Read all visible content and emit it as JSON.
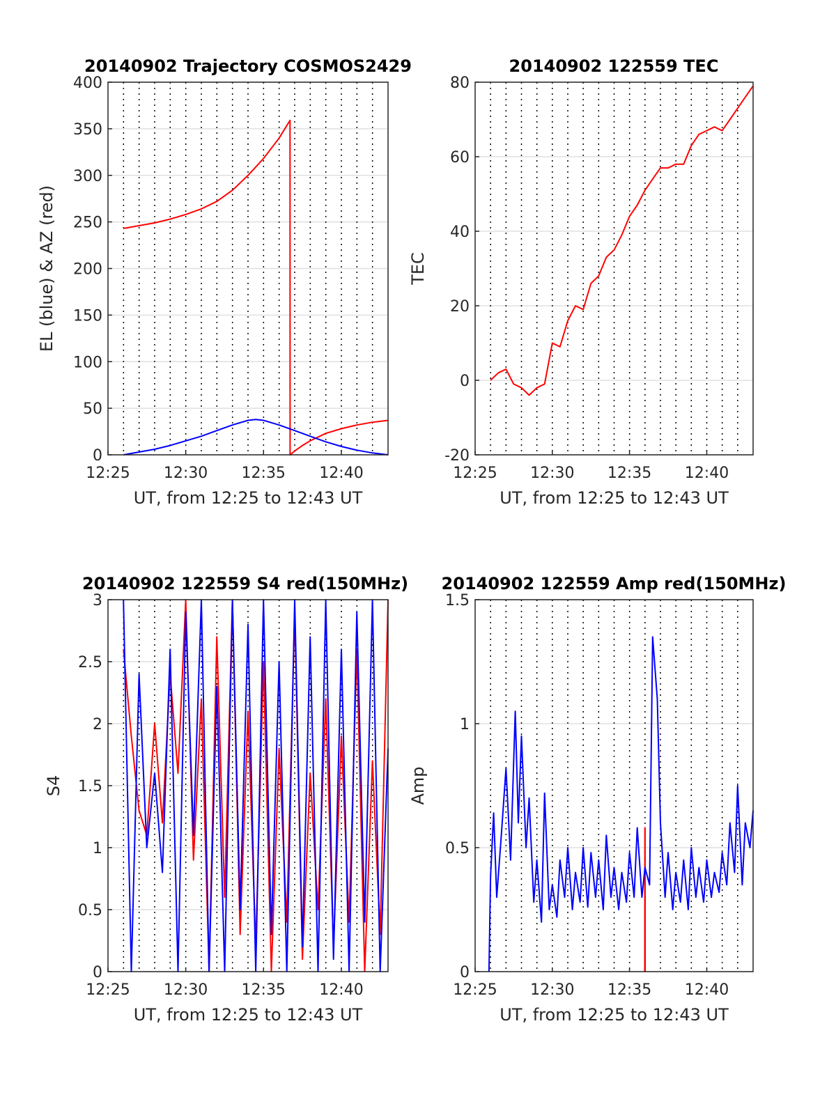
{
  "chart_data": [
    {
      "type": "line",
      "title": "20140902 Trajectory COSMOS2429",
      "xlabel": "UT, from 12:25 to 12:43 UT",
      "ylabel": "EL (blue) & AZ (red)",
      "xlim": [
        12.4167,
        12.7167
      ],
      "ylim": [
        0,
        400
      ],
      "x_ticks": [
        12.4167,
        12.5,
        12.5833,
        12.6667
      ],
      "x_tick_labels": [
        "12:25",
        "12:30",
        "12:35",
        "12:40"
      ],
      "y_ticks": [
        0,
        50,
        100,
        150,
        200,
        250,
        300,
        350,
        400
      ],
      "y_tick_labels": [
        "0",
        "50",
        "100",
        "150",
        "200",
        "250",
        "300",
        "350",
        "400"
      ],
      "grid": "dotted vertical every minute, light horizontal at ticks",
      "series": [
        {
          "color": "#ff0000",
          "x": [
            12.4333,
            12.45,
            12.4667,
            12.4833,
            12.5,
            12.5167,
            12.5333,
            12.55,
            12.5667,
            12.5833,
            12.6,
            12.6117,
            12.6118,
            12.6167,
            12.625,
            12.6333,
            12.65,
            12.6667,
            12.6833,
            12.7,
            12.7167
          ],
          "y": [
            243,
            246,
            249,
            253,
            258,
            264,
            272,
            284,
            300,
            318,
            340,
            359,
            0,
            4,
            10,
            15,
            23,
            28,
            32,
            35,
            37
          ]
        },
        {
          "color": "#0000ff",
          "x": [
            12.4333,
            12.45,
            12.4667,
            12.4833,
            12.5,
            12.5167,
            12.5333,
            12.55,
            12.5667,
            12.575,
            12.5833,
            12.6,
            12.6167,
            12.6333,
            12.65,
            12.6667,
            12.6833,
            12.7,
            12.7167
          ],
          "y": [
            0,
            3,
            6,
            10,
            15,
            20,
            26,
            32,
            37,
            38,
            37,
            32,
            26,
            20,
            14,
            9,
            5,
            2,
            0
          ]
        }
      ]
    },
    {
      "type": "line",
      "title": "20140902 122559 TEC",
      "xlabel": "UT, from 12:25 to 12:43 UT",
      "ylabel": "TEC",
      "xlim": [
        12.4167,
        12.7167
      ],
      "ylim": [
        -20,
        80
      ],
      "x_ticks": [
        12.4167,
        12.5,
        12.5833,
        12.6667
      ],
      "x_tick_labels": [
        "12:25",
        "12:30",
        "12:35",
        "12:40"
      ],
      "y_ticks": [
        -20,
        0,
        20,
        40,
        60,
        80
      ],
      "y_tick_labels": [
        "-20",
        "0",
        "20",
        "40",
        "60",
        "80"
      ],
      "grid": "dotted vertical every minute, light horizontal at ticks",
      "series": [
        {
          "color": "#ff0000",
          "x": [
            12.4333,
            12.4417,
            12.45,
            12.4583,
            12.4667,
            12.475,
            12.4833,
            12.4917,
            12.5,
            12.5083,
            12.5167,
            12.525,
            12.5333,
            12.5417,
            12.55,
            12.5583,
            12.5667,
            12.575,
            12.5833,
            12.5917,
            12.6,
            12.6083,
            12.6167,
            12.625,
            12.6333,
            12.6417,
            12.65,
            12.6583,
            12.6667,
            12.675,
            12.6833,
            12.6917,
            12.7,
            12.7083,
            12.7167
          ],
          "y": [
            0,
            2,
            3,
            -1,
            -2,
            -4,
            -2,
            -1,
            10,
            9,
            16,
            20,
            19,
            26,
            28,
            33,
            35,
            39,
            44,
            47,
            51,
            54,
            57,
            57,
            58,
            58,
            63,
            66,
            67,
            68,
            67,
            70,
            73,
            76,
            79
          ]
        }
      ]
    },
    {
      "type": "line",
      "title": "20140902 122559 S4 red(150MHz)",
      "xlabel": "UT, from 12:25 to 12:43 UT",
      "ylabel": "S4",
      "xlim": [
        12.4167,
        12.7167
      ],
      "ylim": [
        0,
        3
      ],
      "x_ticks": [
        12.4167,
        12.5,
        12.5833,
        12.6667
      ],
      "x_tick_labels": [
        "12:25",
        "12:30",
        "12:35",
        "12:40"
      ],
      "y_ticks": [
        0,
        0.5,
        1,
        1.5,
        2,
        2.5,
        3
      ],
      "y_tick_labels": [
        "0",
        "0.5",
        "1",
        "1.5",
        "2",
        "2.5",
        "3"
      ],
      "grid": "dotted vertical every minute, light horizontal at ticks",
      "series": [
        {
          "color": "#ff0000",
          "x": [
            12.4333,
            12.4417,
            12.45,
            12.4583,
            12.4667,
            12.475,
            12.4833,
            12.4917,
            12.5,
            12.5083,
            12.5167,
            12.525,
            12.5333,
            12.5417,
            12.55,
            12.5583,
            12.5667,
            12.575,
            12.5833,
            12.5917,
            12.6,
            12.6083,
            12.6167,
            12.625,
            12.6333,
            12.6417,
            12.65,
            12.6583,
            12.6667,
            12.675,
            12.6833,
            12.6917,
            12.7,
            12.7083,
            12.7167
          ],
          "y": [
            2.6,
            1.9,
            1.3,
            1.1,
            2.0,
            1.2,
            2.4,
            1.6,
            3.0,
            0.9,
            2.2,
            0.0,
            2.7,
            0.6,
            3.0,
            0.3,
            2.1,
            0.2,
            2.5,
            0.0,
            1.8,
            0.4,
            2.9,
            0.1,
            1.6,
            0.5,
            2.2,
            0.2,
            1.9,
            0.4,
            2.6,
            0.0,
            1.7,
            0.3,
            3.0
          ]
        },
        {
          "color": "#0000ff",
          "x": [
            12.4333,
            12.4417,
            12.45,
            12.4583,
            12.4667,
            12.475,
            12.4833,
            12.4917,
            12.5,
            12.5083,
            12.5167,
            12.525,
            12.5333,
            12.5417,
            12.55,
            12.5583,
            12.5667,
            12.575,
            12.5833,
            12.5917,
            12.6,
            12.6083,
            12.6167,
            12.625,
            12.6333,
            12.6417,
            12.65,
            12.6583,
            12.6667,
            12.675,
            12.6833,
            12.6917,
            12.7,
            12.7083,
            12.7167
          ],
          "y": [
            3.0,
            0.0,
            2.4,
            1.0,
            1.6,
            0.8,
            2.6,
            0.0,
            2.9,
            1.1,
            3.0,
            0.0,
            2.3,
            0.0,
            3.0,
            0.5,
            2.8,
            0.0,
            3.0,
            0.3,
            2.5,
            0.0,
            3.0,
            0.2,
            2.7,
            0.0,
            3.0,
            0.1,
            2.6,
            0.0,
            2.9,
            0.4,
            3.0,
            0.0,
            1.8
          ]
        }
      ]
    },
    {
      "type": "line",
      "title": "20140902 122559 Amp red(150MHz)",
      "xlabel": "UT, from 12:25 to 12:43 UT",
      "ylabel": "Amp",
      "xlim": [
        12.4167,
        12.7167
      ],
      "ylim": [
        0,
        1.5
      ],
      "x_ticks": [
        12.4167,
        12.5,
        12.5833,
        12.6667
      ],
      "x_tick_labels": [
        "12:25",
        "12:30",
        "12:35",
        "12:40"
      ],
      "y_ticks": [
        0,
        0.5,
        1,
        1.5
      ],
      "y_tick_labels": [
        "0",
        "0.5",
        "1",
        "1.5"
      ],
      "grid": "dotted vertical every minute, light horizontal at ticks",
      "series": [
        {
          "color": "#ff0000",
          "x": [
            12.5998,
            12.5999,
            12.6,
            12.6001,
            12.6002
          ],
          "y": [
            0.0,
            0.58,
            0.0,
            0.58,
            0.0
          ]
        },
        {
          "color": "#0000ff",
          "x": [
            12.4317,
            12.4333,
            12.4367,
            12.44,
            12.445,
            12.45,
            12.455,
            12.46,
            12.4633,
            12.4667,
            12.4717,
            12.475,
            12.48,
            12.4833,
            12.4883,
            12.4917,
            12.4967,
            12.5,
            12.505,
            12.5083,
            12.5133,
            12.5167,
            12.5217,
            12.525,
            12.53,
            12.5333,
            12.5383,
            12.5417,
            12.5467,
            12.55,
            12.555,
            12.5583,
            12.5633,
            12.5667,
            12.5717,
            12.575,
            12.58,
            12.5833,
            12.5883,
            12.5917,
            12.5967,
            12.6,
            12.605,
            12.6083,
            12.6133,
            12.6167,
            12.6217,
            12.625,
            12.63,
            12.6333,
            12.6383,
            12.6417,
            12.6467,
            12.65,
            12.655,
            12.6583,
            12.6633,
            12.6667,
            12.6717,
            12.675,
            12.68,
            12.6833,
            12.6883,
            12.6917,
            12.6967,
            12.7,
            12.705,
            12.7083,
            12.7133,
            12.7167
          ],
          "y": [
            0.0,
            0.38,
            0.64,
            0.3,
            0.55,
            0.82,
            0.45,
            1.05,
            0.6,
            0.95,
            0.5,
            0.7,
            0.28,
            0.45,
            0.2,
            0.72,
            0.25,
            0.35,
            0.22,
            0.45,
            0.3,
            0.5,
            0.25,
            0.4,
            0.28,
            0.5,
            0.26,
            0.48,
            0.3,
            0.45,
            0.25,
            0.55,
            0.3,
            0.42,
            0.25,
            0.4,
            0.28,
            0.48,
            0.3,
            0.58,
            0.3,
            0.42,
            0.35,
            1.35,
            1.1,
            0.6,
            0.3,
            0.48,
            0.25,
            0.4,
            0.28,
            0.45,
            0.25,
            0.5,
            0.3,
            0.42,
            0.28,
            0.45,
            0.3,
            0.4,
            0.32,
            0.48,
            0.35,
            0.6,
            0.4,
            0.75,
            0.35,
            0.6,
            0.5,
            0.65
          ]
        }
      ]
    }
  ]
}
